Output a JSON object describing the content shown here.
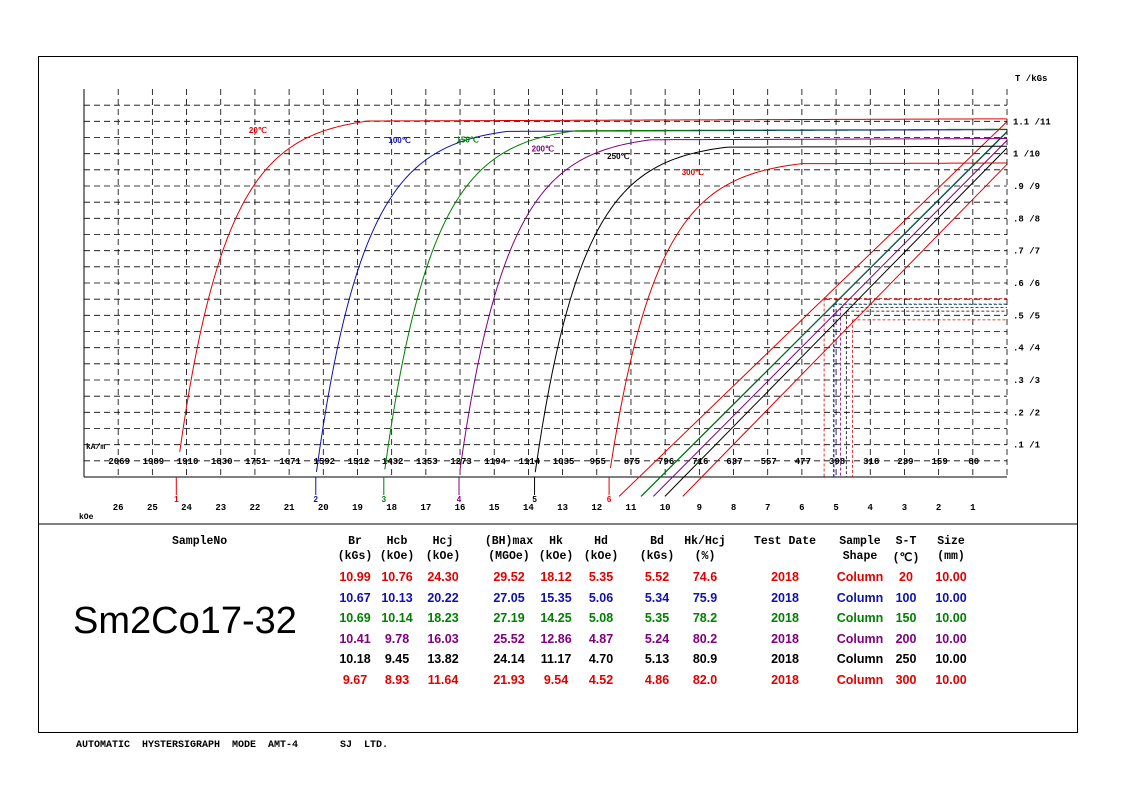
{
  "chart_data": {
    "type": "line",
    "title": "",
    "x_axis": {
      "unit_top": "kA/m",
      "ticks_top": [
        "2069",
        "1989",
        "1910",
        "1830",
        "1751",
        "1671",
        "1592",
        "1512",
        "1432",
        "1353",
        "1273",
        "1194",
        "1114",
        "1035",
        "955",
        "875",
        "796",
        "716",
        "637",
        "557",
        "477",
        "398",
        "318",
        "239",
        "159",
        "80"
      ],
      "unit_bottom": "kOe",
      "ticks_bottom": [
        "26",
        "25",
        "24",
        "23",
        "22",
        "21",
        "20",
        "19",
        "18",
        "17",
        "16",
        "15",
        "14",
        "13",
        "12",
        "11",
        "10",
        "9",
        "8",
        "7",
        "6",
        "5",
        "4",
        "3",
        "2",
        "1"
      ],
      "range_koe": [
        27,
        0
      ]
    },
    "y_axis": {
      "unit": "T /kGs",
      "ticks": [
        "1.1 /11",
        "1 /10",
        ".9 /9",
        ".8 /8",
        ".7 /7",
        ".6 /6",
        ".5 /5",
        ".4 /4",
        ".3 /3",
        ".2 /2",
        ".1 /1"
      ],
      "range_kgs": [
        0,
        12
      ]
    },
    "grid": true,
    "series": [
      {
        "name": "20℃",
        "color": "#e00000",
        "marker": "1",
        "Br": 10.99,
        "Hcb": 10.76,
        "Hcj": 24.3
      },
      {
        "name": "100℃",
        "color": "#1010b0",
        "marker": "2",
        "Br": 10.67,
        "Hcb": 10.13,
        "Hcj": 20.22
      },
      {
        "name": "150℃",
        "color": "#008000",
        "marker": "3",
        "Br": 10.69,
        "Hcb": 10.14,
        "Hcj": 18.23
      },
      {
        "name": "200℃",
        "color": "#800080",
        "marker": "4",
        "Br": 10.41,
        "Hcb": 9.78,
        "Hcj": 16.03
      },
      {
        "name": "250℃",
        "color": "#000000",
        "marker": "5",
        "Br": 10.18,
        "Hcb": 9.45,
        "Hcj": 13.82
      },
      {
        "name": "300℃",
        "color": "#e00000",
        "marker": "6",
        "Br": 9.67,
        "Hcb": 8.93,
        "Hcj": 11.64
      }
    ]
  },
  "table": {
    "sample_label": "SampleNo",
    "sample_name": "Sm2Co17-32",
    "headers": [
      {
        "top": "Br",
        "bottom": "(kGs)"
      },
      {
        "top": "Hcb",
        "bottom": "(kOe)"
      },
      {
        "top": "Hcj",
        "bottom": "(kOe)"
      },
      {
        "top": "(BH)max",
        "bottom": "(MGOe)"
      },
      {
        "top": "Hk",
        "bottom": "(kOe)"
      },
      {
        "top": "Hd",
        "bottom": "(kOe)"
      },
      {
        "top": "Bd",
        "bottom": "(kGs)"
      },
      {
        "top": "Hk/Hcj",
        "bottom": "(%)"
      },
      {
        "top": "Test Date",
        "bottom": ""
      },
      {
        "top": "Sample",
        "bottom": "Shape"
      },
      {
        "top": "S-T",
        "bottom": "(℃)"
      },
      {
        "top": "Size",
        "bottom": "(mm)"
      }
    ],
    "rows": [
      {
        "color": "#e00000",
        "values": [
          "10.99",
          "10.76",
          "24.30",
          "29.52",
          "18.12",
          "5.35",
          "5.52",
          "74.6",
          "2018",
          "Column",
          "20",
          "10.00"
        ]
      },
      {
        "color": "#1010b0",
        "values": [
          "10.67",
          "10.13",
          "20.22",
          "27.05",
          "15.35",
          "5.06",
          "5.34",
          "75.9",
          "2018",
          "Column",
          "100",
          "10.00"
        ]
      },
      {
        "color": "#008000",
        "values": [
          "10.69",
          "10.14",
          "18.23",
          "27.19",
          "14.25",
          "5.08",
          "5.35",
          "78.2",
          "2018",
          "Column",
          "150",
          "10.00"
        ]
      },
      {
        "color": "#800080",
        "values": [
          "10.41",
          "9.78",
          "16.03",
          "25.52",
          "12.86",
          "4.87",
          "5.24",
          "80.2",
          "2018",
          "Column",
          "200",
          "10.00"
        ]
      },
      {
        "color": "#000000",
        "values": [
          "10.18",
          "9.45",
          "13.82",
          "24.14",
          "11.17",
          "4.70",
          "5.13",
          "80.9",
          "2018",
          "Column",
          "250",
          "10.00"
        ]
      },
      {
        "color": "#e00000",
        "values": [
          "9.67",
          "8.93",
          "11.64",
          "21.93",
          "9.54",
          "4.52",
          "4.86",
          "82.0",
          "2018",
          "Column",
          "300",
          "10.00"
        ]
      }
    ]
  },
  "footer": "AUTOMATIC  HYSTERSIGRAPH  MODE  AMT-4       SJ  LTD."
}
